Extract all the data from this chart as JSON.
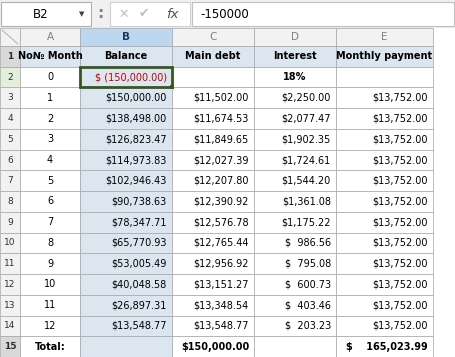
{
  "formula_bar_cell": "B2",
  "formula_bar_value": "-150000",
  "col_letters": [
    "A",
    "B",
    "C",
    "D",
    "E"
  ],
  "row_numbers": [
    "1",
    "2",
    "3",
    "4",
    "5",
    "6",
    "7",
    "8",
    "9",
    "10",
    "11",
    "12",
    "13",
    "14",
    "15"
  ],
  "headers": [
    "No№ Month",
    "Balance",
    "Main debt",
    "Interest",
    "Monthly payment"
  ],
  "rows": [
    [
      "0",
      "$ (150,000.00)",
      "",
      "18%",
      ""
    ],
    [
      "1",
      "$150,000.00",
      "$11,502.00",
      "$2,250.00",
      "$13,752.00"
    ],
    [
      "2",
      "$138,498.00",
      "$11,674.53",
      "$2,077.47",
      "$13,752.00"
    ],
    [
      "3",
      "$126,823.47",
      "$11,849.65",
      "$1,902.35",
      "$13,752.00"
    ],
    [
      "4",
      "$114,973.83",
      "$12,027.39",
      "$1,724.61",
      "$13,752.00"
    ],
    [
      "5",
      "$102,946.43",
      "$12,207.80",
      "$1,544.20",
      "$13,752.00"
    ],
    [
      "6",
      "$90,738.63",
      "$12,390.92",
      "$1,361.08",
      "$13,752.00"
    ],
    [
      "7",
      "$78,347.71",
      "$12,576.78",
      "$1,175.22",
      "$13,752.00"
    ],
    [
      "8",
      "$65,770.93",
      "$12,765.44",
      "$  986.56",
      "$13,752.00"
    ],
    [
      "9",
      "$53,005.49",
      "$12,956.92",
      "$  795.08",
      "$13,752.00"
    ],
    [
      "10",
      "$40,048.58",
      "$13,151.27",
      "$  600.73",
      "$13,752.00"
    ],
    [
      "11",
      "$26,897.31",
      "$13,348.54",
      "$  403.46",
      "$13,752.00"
    ],
    [
      "12",
      "$13,548.77",
      "$13,548.77",
      "$  203.23",
      "$13,752.00"
    ],
    [
      "Total:",
      "",
      "$150,000.00",
      "",
      "$    165,023.99"
    ]
  ],
  "header_bg": "#dce6f1",
  "selected_col_header_bg": "#bdd7ee",
  "selected_cell_border": "#375623",
  "grid_color": "#a6a6a6",
  "text_color": "#000000",
  "red_color": "#c00000",
  "blue_header_color": "#1f3864",
  "formula_bar_bg": "#ffffff",
  "row_header_bg": "#f2f2f2",
  "row_header_selected_bg": "#d6e4bc",
  "row_header_bold_bg": "#d9d9d9",
  "col_header_bg": "#f2f2f2"
}
